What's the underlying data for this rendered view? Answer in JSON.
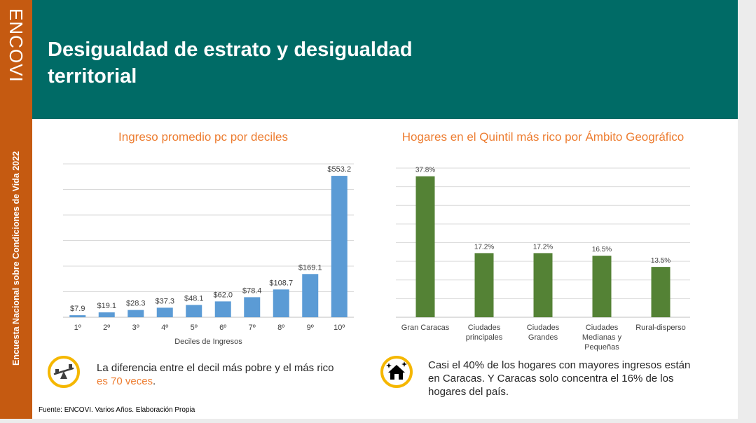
{
  "logo_text": "ENCOVI",
  "sidebar_text": "Encuesta Nacional sobre Condiciones de Vida 2022",
  "title": "Desigualdad de estrato y desigualdad territorial",
  "colors": {
    "accent": "#ed7d31",
    "header": "#006b66",
    "sidebar": "#c55a11",
    "bar_blue": "#5b9bd5",
    "bar_green": "#548235",
    "icon_ring": "#f5b700"
  },
  "chart_data": [
    {
      "type": "bar",
      "title": "Ingreso promedio pc por deciles",
      "xlabel": "Deciles de Ingresos",
      "ylabel": "",
      "categories": [
        "1º",
        "2º",
        "3º",
        "4º",
        "5º",
        "6º",
        "7º",
        "8º",
        "9º",
        "10º"
      ],
      "values": [
        7.9,
        19.1,
        28.3,
        37.3,
        48.1,
        62.0,
        78.4,
        108.7,
        169.1,
        553.2
      ],
      "value_labels": [
        "$7.9",
        "$19.1",
        "$28.3",
        "$37.3",
        "$48.1",
        "$62.0",
        "$78.4",
        "$108.7",
        "$169.1",
        "$553.2"
      ],
      "ylim": [
        0,
        600
      ],
      "grid": true
    },
    {
      "type": "bar",
      "title": "Hogares en el Quintil más rico por Ámbito Geográfico",
      "xlabel": "",
      "ylabel": "",
      "categories": [
        [
          "Gran Caracas"
        ],
        [
          "Ciudades",
          "principales"
        ],
        [
          "Ciudades",
          "Grandes"
        ],
        [
          "Ciudades",
          "Medianas y",
          "Pequeñas"
        ],
        [
          "Rural-disperso"
        ]
      ],
      "values": [
        37.8,
        17.2,
        17.2,
        16.5,
        13.5
      ],
      "value_labels": [
        "37.8%",
        "17.2%",
        "17.2%",
        "16.5%",
        "13.5%"
      ],
      "ylim": [
        0,
        40
      ],
      "grid": true
    }
  ],
  "notes": {
    "left_line1": "La diferencia entre el decil más pobre y el más rico",
    "left_highlight": "es 70 veces",
    "left_end": ".",
    "right_line1": "Casi el 40% de los hogares con mayores ingresos están",
    "right_line2": "en Caracas. Y Caracas solo concentra el 16% de los",
    "right_line3": "hogares del país."
  },
  "source": "Fuente: ENCOVI. Varios Años. Elaboración Propia"
}
